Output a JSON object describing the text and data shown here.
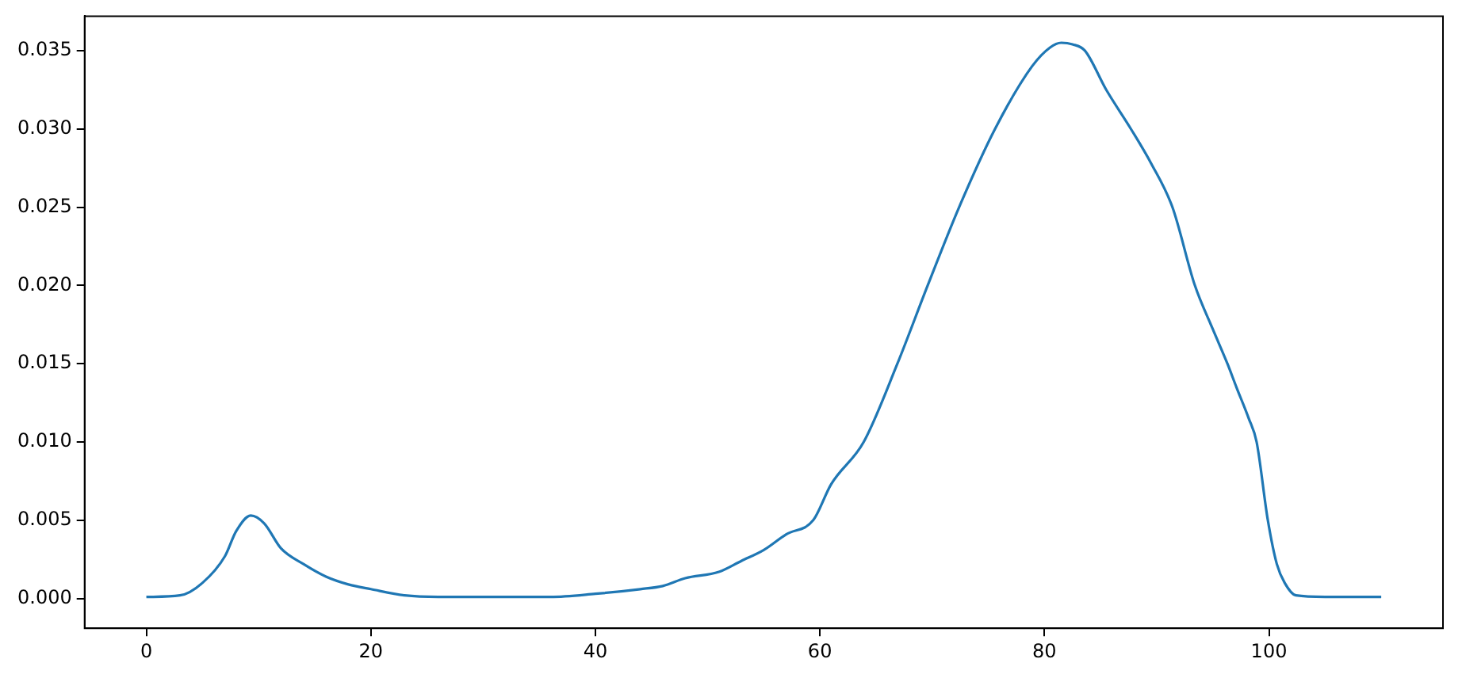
{
  "chart_data": {
    "type": "line",
    "xlim": [
      -5.5,
      115.5
    ],
    "ylim": [
      -0.0019,
      0.0372
    ],
    "xticks": [
      0,
      20,
      40,
      60,
      80,
      100
    ],
    "yticks": [
      {
        "value": 0,
        "label": "0.000"
      },
      {
        "value": 0.005,
        "label": "0.005"
      },
      {
        "value": 0.01,
        "label": "0.010"
      },
      {
        "value": 0.015,
        "label": "0.015"
      },
      {
        "value": 0.02,
        "label": "0.020"
      },
      {
        "value": 0.025,
        "label": "0.025"
      },
      {
        "value": 0.03,
        "label": "0.030"
      },
      {
        "value": 0.035,
        "label": "0.035"
      }
    ],
    "grid": false,
    "legend": false,
    "marker": "none",
    "line_style": "solid",
    "series": [
      {
        "color": "#1f77b4",
        "x": [
          0,
          3,
          5,
          7,
          8,
          9.3,
          10.5,
          12,
          14,
          16,
          18,
          20,
          23,
          26,
          30,
          36,
          40,
          44,
          46,
          48,
          51,
          53,
          55,
          57,
          59.4,
          61,
          63.9,
          66.9,
          69.6,
          72.4,
          75.6,
          78.9,
          80.5,
          81.5,
          82.5,
          83.6,
          85.5,
          87.7,
          89.5,
          91.4,
          93.4,
          95,
          96.3,
          97.1,
          98.2,
          98.9,
          99.9,
          100.7,
          101.4,
          102.4,
          105,
          110
        ],
        "values": [
          0.0001,
          0.0002,
          0.001,
          0.0027,
          0.0043,
          0.0053,
          0.0048,
          0.0032,
          0.0022,
          0.0014,
          0.0009,
          0.0006,
          0.0002,
          0.0001,
          0.0001,
          0.0001,
          0.0003,
          0.0006,
          0.0008,
          0.0013,
          0.0017,
          0.0024,
          0.0031,
          0.0041,
          0.005,
          0.0073,
          0.01,
          0.015,
          0.02,
          0.025,
          0.03,
          0.034,
          0.0352,
          0.0355,
          0.0354,
          0.035,
          0.0325,
          0.03,
          0.0278,
          0.025,
          0.02,
          0.0172,
          0.015,
          0.0135,
          0.0115,
          0.01,
          0.005,
          0.0022,
          0.001,
          0.0002,
          0.0001,
          0.0001
        ]
      }
    ]
  }
}
